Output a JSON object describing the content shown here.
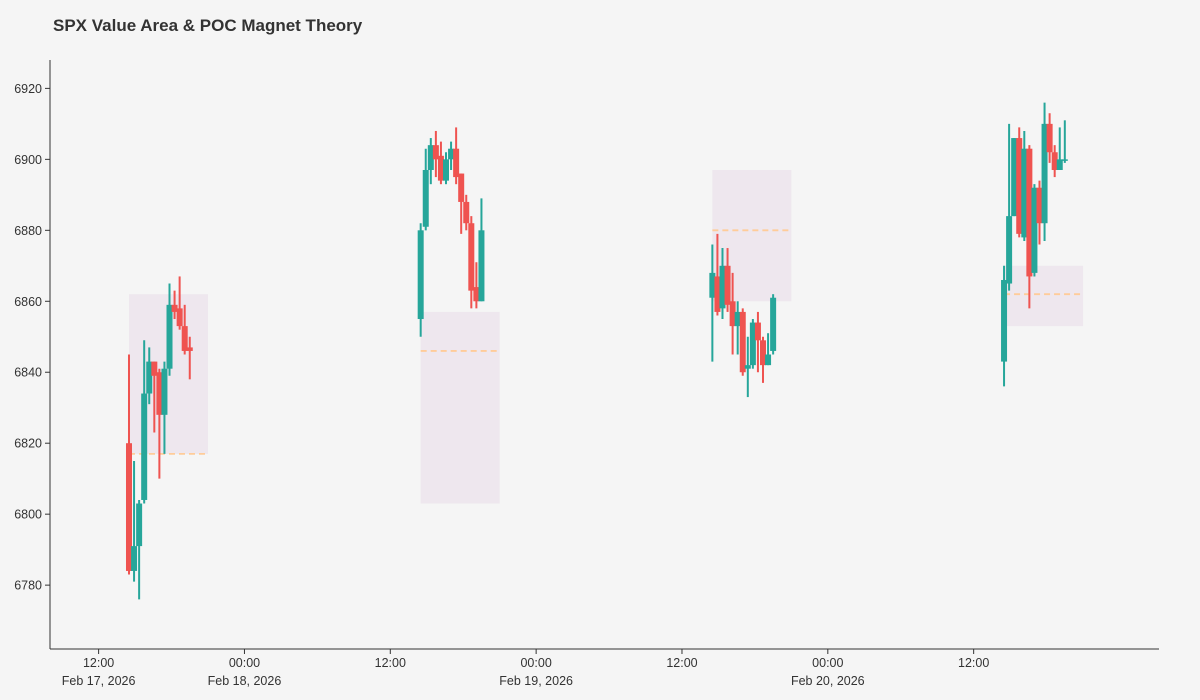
{
  "chart_data": {
    "type": "candlestick",
    "title": "SPX Value Area & POC Magnet Theory",
    "xlabel": "",
    "ylabel": "",
    "ylim": [
      6762,
      6928
    ],
    "xlim": [
      "2026-02-17 08:00",
      "2026-02-21 03:15"
    ],
    "grid": false,
    "legend": "none",
    "colors": {
      "up": "#26a69a",
      "down": "#ef5350",
      "value_area": "#ebe1eb",
      "poc": "#ffcc99",
      "axis": "#333333",
      "background": "#f5f5f5"
    },
    "y_ticks": [
      6780,
      6800,
      6820,
      6840,
      6860,
      6880,
      6900,
      6920
    ],
    "x_ticks": [
      {
        "t": "2026-02-17 12:00",
        "line1": "12:00",
        "line2": "Feb 17, 2026"
      },
      {
        "t": "2026-02-18 00:00",
        "line1": "00:00",
        "line2": "Feb 18, 2026"
      },
      {
        "t": "2026-02-18 12:00",
        "line1": "12:00",
        "line2": ""
      },
      {
        "t": "2026-02-19 00:00",
        "line1": "00:00",
        "line2": "Feb 19, 2026"
      },
      {
        "t": "2026-02-19 12:00",
        "line1": "12:00",
        "line2": ""
      },
      {
        "t": "2026-02-20 00:00",
        "line1": "00:00",
        "line2": "Feb 20, 2026"
      },
      {
        "t": "2026-02-20 12:00",
        "line1": "12:00",
        "line2": ""
      }
    ],
    "sessions": [
      {
        "date": "2026-02-17",
        "value_area": {
          "start": "2026-02-17 14:30",
          "end": "2026-02-17 21:00",
          "low": 6817,
          "high": 6862
        },
        "poc": 6817,
        "candles": [
          {
            "t": "14:30",
            "o": 6820,
            "h": 6845,
            "l": 6783,
            "c": 6784
          },
          {
            "t": "14:55",
            "o": 6784,
            "h": 6815,
            "l": 6781,
            "c": 6791
          },
          {
            "t": "15:20",
            "o": 6791,
            "h": 6804,
            "l": 6776,
            "c": 6803
          },
          {
            "t": "15:45",
            "o": 6804,
            "h": 6849,
            "l": 6803,
            "c": 6834
          },
          {
            "t": "16:10",
            "o": 6834,
            "h": 6847,
            "l": 6831,
            "c": 6843
          },
          {
            "t": "16:35",
            "o": 6843,
            "h": 6843,
            "l": 6823,
            "c": 6839
          },
          {
            "t": "17:00",
            "o": 6840,
            "h": 6841,
            "l": 6810,
            "c": 6828
          },
          {
            "t": "17:25",
            "o": 6828,
            "h": 6843,
            "l": 6817,
            "c": 6841
          },
          {
            "t": "17:50",
            "o": 6841,
            "h": 6865,
            "l": 6839,
            "c": 6859
          },
          {
            "t": "18:15",
            "o": 6859,
            "h": 6863,
            "l": 6855,
            "c": 6857
          },
          {
            "t": "18:40",
            "o": 6858,
            "h": 6867,
            "l": 6852,
            "c": 6853
          },
          {
            "t": "19:05",
            "o": 6853,
            "h": 6859,
            "l": 6845,
            "c": 6846
          },
          {
            "t": "19:30",
            "o": 6847,
            "h": 6850,
            "l": 6838,
            "c": 6846
          }
        ]
      },
      {
        "date": "2026-02-18",
        "value_area": {
          "start": "2026-02-18 14:30",
          "end": "2026-02-18 21:00",
          "low": 6803,
          "high": 6857
        },
        "poc": 6846,
        "candles": [
          {
            "t": "14:30",
            "o": 6855,
            "h": 6882,
            "l": 6850,
            "c": 6880
          },
          {
            "t": "14:55",
            "o": 6881,
            "h": 6903,
            "l": 6880,
            "c": 6897
          },
          {
            "t": "15:20",
            "o": 6897,
            "h": 6906,
            "l": 6893,
            "c": 6904
          },
          {
            "t": "15:45",
            "o": 6904,
            "h": 6908,
            "l": 6895,
            "c": 6900
          },
          {
            "t": "16:10",
            "o": 6901,
            "h": 6905,
            "l": 6893,
            "c": 6894
          },
          {
            "t": "16:35",
            "o": 6894,
            "h": 6902,
            "l": 6893,
            "c": 6900
          },
          {
            "t": "17:00",
            "o": 6900,
            "h": 6905,
            "l": 6897,
            "c": 6903
          },
          {
            "t": "17:25",
            "o": 6903,
            "h": 6909,
            "l": 6893,
            "c": 6895
          },
          {
            "t": "17:50",
            "o": 6896,
            "h": 6896,
            "l": 6879,
            "c": 6888
          },
          {
            "t": "18:15",
            "o": 6888,
            "h": 6890,
            "l": 6880,
            "c": 6882
          },
          {
            "t": "18:40",
            "o": 6882,
            "h": 6884,
            "l": 6858,
            "c": 6863
          },
          {
            "t": "19:05",
            "o": 6864,
            "h": 6871,
            "l": 6858,
            "c": 6860
          },
          {
            "t": "19:30",
            "o": 6860,
            "h": 6889,
            "l": 6860,
            "c": 6880
          }
        ]
      },
      {
        "date": "2026-02-19",
        "value_area": {
          "start": "2026-02-19 14:30",
          "end": "2026-02-19 21:00",
          "low": 6860,
          "high": 6897
        },
        "poc": 6880,
        "candles": [
          {
            "t": "14:30",
            "o": 6861,
            "h": 6876,
            "l": 6843,
            "c": 6868
          },
          {
            "t": "14:55",
            "o": 6867,
            "h": 6879,
            "l": 6856,
            "c": 6857
          },
          {
            "t": "15:20",
            "o": 6858,
            "h": 6875,
            "l": 6855,
            "c": 6870
          },
          {
            "t": "15:45",
            "o": 6870,
            "h": 6875,
            "l": 6857,
            "c": 6859
          },
          {
            "t": "16:10",
            "o": 6860,
            "h": 6868,
            "l": 6845,
            "c": 6853
          },
          {
            "t": "16:35",
            "o": 6853,
            "h": 6860,
            "l": 6845,
            "c": 6857
          },
          {
            "t": "17:00",
            "o": 6857,
            "h": 6858,
            "l": 6839,
            "c": 6840
          },
          {
            "t": "17:25",
            "o": 6841,
            "h": 6850,
            "l": 6833,
            "c": 6842
          },
          {
            "t": "17:50",
            "o": 6842,
            "h": 6855,
            "l": 6841,
            "c": 6854
          },
          {
            "t": "18:15",
            "o": 6854,
            "h": 6857,
            "l": 6840,
            "c": 6849
          },
          {
            "t": "18:40",
            "o": 6849,
            "h": 6850,
            "l": 6837,
            "c": 6842
          },
          {
            "t": "19:05",
            "o": 6842,
            "h": 6851,
            "l": 6842,
            "c": 6845
          },
          {
            "t": "19:30",
            "o": 6846,
            "h": 6862,
            "l": 6845,
            "c": 6861
          }
        ]
      },
      {
        "date": "2026-02-20",
        "value_area": {
          "start": "2026-02-20 14:30",
          "end": "2026-02-20 21:00",
          "low": 6853,
          "high": 6870
        },
        "poc": 6862,
        "candles": [
          {
            "t": "14:30",
            "o": 6843,
            "h": 6870,
            "l": 6836,
            "c": 6866
          },
          {
            "t": "14:55",
            "o": 6865,
            "h": 6910,
            "l": 6863,
            "c": 6884
          },
          {
            "t": "15:20",
            "o": 6884,
            "h": 6906,
            "l": 6884,
            "c": 6906
          },
          {
            "t": "15:45",
            "o": 6906,
            "h": 6909,
            "l": 6878,
            "c": 6879
          },
          {
            "t": "16:10",
            "o": 6878,
            "h": 6908,
            "l": 6877,
            "c": 6903
          },
          {
            "t": "16:35",
            "o": 6903,
            "h": 6904,
            "l": 6858,
            "c": 6867
          },
          {
            "t": "17:00",
            "o": 6868,
            "h": 6893,
            "l": 6867,
            "c": 6892
          },
          {
            "t": "17:25",
            "o": 6892,
            "h": 6894,
            "l": 6876,
            "c": 6882
          },
          {
            "t": "17:50",
            "o": 6882,
            "h": 6916,
            "l": 6877,
            "c": 6910
          },
          {
            "t": "18:15",
            "o": 6910,
            "h": 6913,
            "l": 6899,
            "c": 6902
          },
          {
            "t": "18:40",
            "o": 6902,
            "h": 6904,
            "l": 6895,
            "c": 6897
          },
          {
            "t": "19:05",
            "o": 6897,
            "h": 6909,
            "l": 6897,
            "c": 6900
          },
          {
            "t": "19:30",
            "o": 6900,
            "h": 6911,
            "l": 6899,
            "c": 6900
          }
        ]
      }
    ]
  }
}
